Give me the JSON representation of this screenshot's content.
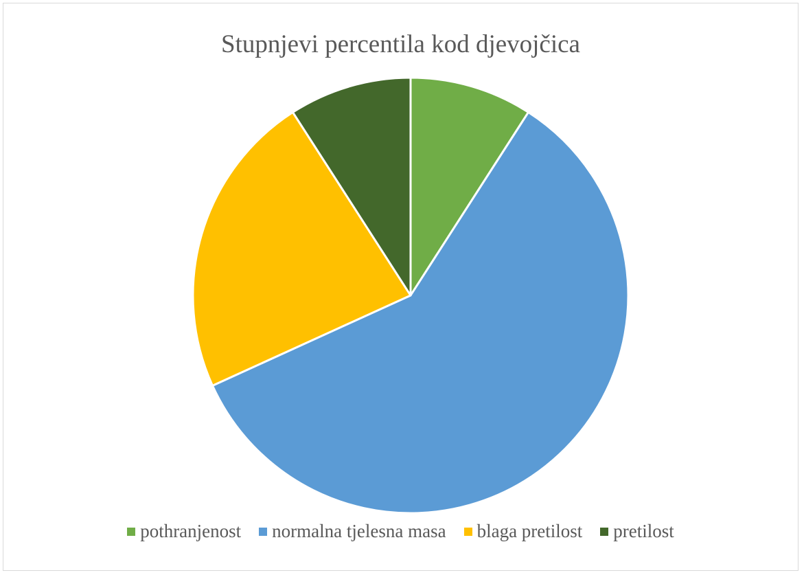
{
  "chart_data": {
    "type": "pie",
    "title": "Stupnjevi percentila kod djevojčica",
    "categories": [
      "pothranjenost",
      "normalna tjelesna masa",
      "blaga pretilost",
      "pretilost"
    ],
    "values": [
      9.1,
      59.1,
      22.7,
      9.1
    ],
    "colors": [
      "#70ad47",
      "#5b9bd5",
      "#ffc000",
      "#43682b"
    ],
    "start_angle": "top",
    "direction": "clockwise",
    "legend_position": "bottom"
  }
}
